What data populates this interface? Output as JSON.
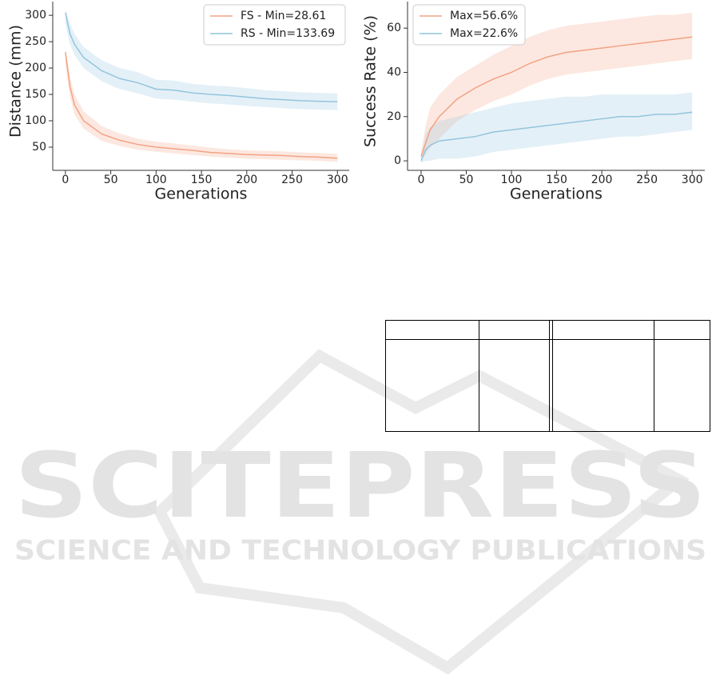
{
  "chart_data": [
    {
      "type": "line",
      "xlabel": "Generations",
      "ylabel": "Distance (mm)",
      "xlim": [
        -14,
        313
      ],
      "ylim": [
        6,
        326
      ],
      "xticks": [
        0,
        50,
        100,
        150,
        200,
        250,
        300
      ],
      "yticks": [
        50,
        100,
        150,
        200,
        250,
        300
      ],
      "legend": "upper right",
      "x": [
        0,
        5,
        10,
        20,
        40,
        60,
        80,
        100,
        120,
        140,
        160,
        180,
        200,
        220,
        240,
        260,
        280,
        300
      ],
      "series": [
        {
          "name": "FS - Min=28.61",
          "color": "#f2a385",
          "values": [
            230,
            165,
            130,
            100,
            75,
            63,
            55,
            50,
            47,
            44,
            40,
            38,
            36,
            35,
            34,
            32,
            31,
            29
          ],
          "lower": [
            205,
            145,
            112,
            85,
            62,
            52,
            45,
            41,
            38,
            35,
            32,
            30,
            28,
            27,
            26,
            25,
            24,
            22
          ],
          "upper": [
            238,
            185,
            150,
            118,
            90,
            76,
            66,
            60,
            57,
            53,
            49,
            46,
            44,
            43,
            42,
            40,
            39,
            37
          ]
        },
        {
          "name": "RS - Min=133.69",
          "color": "#92c5de",
          "values": [
            305,
            265,
            245,
            220,
            195,
            180,
            172,
            160,
            158,
            153,
            150,
            148,
            145,
            142,
            140,
            138,
            137,
            136
          ],
          "lower": [
            285,
            245,
            225,
            200,
            175,
            160,
            152,
            142,
            140,
            136,
            133,
            131,
            128,
            126,
            124,
            122,
            121,
            120
          ],
          "upper": [
            310,
            285,
            265,
            240,
            215,
            200,
            192,
            178,
            176,
            170,
            167,
            165,
            162,
            158,
            156,
            154,
            153,
            152
          ]
        }
      ]
    },
    {
      "type": "line",
      "xlabel": "Generations",
      "ylabel": "Success Rate (%)",
      "xlim": [
        -15,
        314
      ],
      "ylim": [
        -4.3,
        72
      ],
      "xticks": [
        0,
        50,
        100,
        150,
        200,
        250,
        300
      ],
      "yticks": [
        0,
        20,
        40,
        60
      ],
      "legend": "upper left",
      "x": [
        0,
        5,
        10,
        20,
        40,
        60,
        80,
        100,
        120,
        140,
        160,
        180,
        200,
        220,
        240,
        260,
        280,
        300
      ],
      "series": [
        {
          "name": "Max=56.6%",
          "color": "#f2a385",
          "values": [
            2,
            8,
            14,
            20,
            28,
            33,
            37,
            40,
            44,
            47,
            49,
            50,
            51,
            52,
            53,
            54,
            55,
            56
          ],
          "lower": [
            0,
            3,
            6,
            10,
            18,
            23,
            27,
            30,
            34,
            37,
            39,
            40,
            41,
            42,
            43,
            44,
            45,
            46
          ],
          "upper": [
            4,
            16,
            24,
            30,
            38,
            43,
            48,
            52,
            56,
            59,
            61,
            62,
            63,
            64,
            65,
            66,
            66,
            67
          ]
        },
        {
          "name": "Max=22.6%",
          "color": "#92c5de",
          "values": [
            0,
            5,
            7,
            9,
            10,
            11,
            13,
            14,
            15,
            16,
            17,
            18,
            19,
            20,
            20,
            21,
            21,
            22
          ],
          "lower": [
            -1,
            0,
            0,
            1,
            1,
            2,
            4,
            5,
            6,
            7,
            8,
            9,
            10,
            11,
            11,
            12,
            13,
            14
          ],
          "upper": [
            2,
            12,
            15,
            18,
            20,
            22,
            24,
            26,
            27,
            28,
            29,
            29,
            30,
            30,
            30,
            30,
            30,
            31
          ]
        }
      ]
    }
  ],
  "watermark": {
    "title": "SCITEPRESS",
    "subtitle": "SCIENCE AND TECHNOLOGY PUBLICATIONS"
  }
}
